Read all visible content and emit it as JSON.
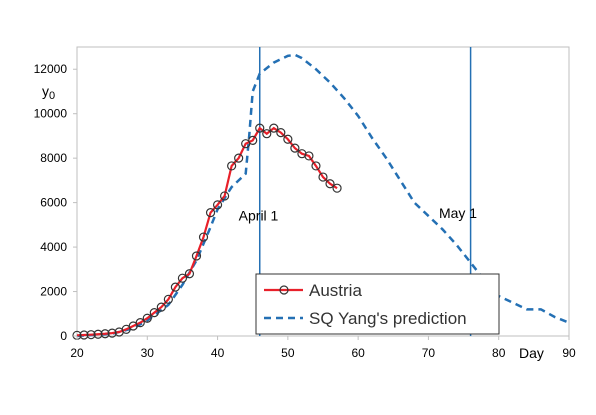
{
  "chart_data": {
    "type": "line",
    "title": "",
    "xlabel": "Day",
    "ylabel": "y0",
    "xlim": [
      20,
      90
    ],
    "ylim": [
      0,
      13000
    ],
    "x_ticks": [
      20,
      30,
      40,
      50,
      60,
      70,
      80,
      90
    ],
    "y_ticks": [
      0,
      2000,
      4000,
      6000,
      8000,
      10000,
      12000
    ],
    "grid": false,
    "legend_position": "bottom-right",
    "colors": {
      "austria": "#e8202a",
      "prediction": "#2470b4",
      "vertical_lines": "#2470b4",
      "marker_edge": "#333333"
    },
    "series": [
      {
        "name": "Austria",
        "style": "solid-line-with-circle-markers",
        "x": [
          20,
          21,
          22,
          23,
          24,
          25,
          26,
          27,
          28,
          29,
          30,
          31,
          32,
          33,
          34,
          35,
          36,
          37,
          38,
          39,
          40,
          41,
          42,
          43,
          44,
          45,
          46,
          47,
          48,
          49,
          50,
          51,
          52,
          53,
          54,
          55,
          56,
          57
        ],
        "y": [
          30,
          45,
          60,
          80,
          100,
          130,
          180,
          300,
          450,
          600,
          800,
          1050,
          1300,
          1650,
          2200,
          2600,
          2800,
          3600,
          4450,
          5550,
          5900,
          6300,
          7650,
          8000,
          8650,
          8800,
          9350,
          9100,
          9350,
          9150,
          8850,
          8450,
          8200,
          8100,
          7650,
          7150,
          6850,
          6650
        ]
      },
      {
        "name": "SQ Yang's prediction",
        "style": "dashed-line",
        "x": [
          20,
          25,
          28,
          30,
          33,
          35,
          37,
          39,
          40,
          41,
          42,
          43,
          44,
          44.5,
          45,
          46,
          48,
          50,
          51,
          52,
          54,
          56,
          58,
          60,
          62,
          64,
          66,
          68,
          70,
          72,
          74,
          76,
          78,
          80,
          82,
          84,
          86,
          88,
          90
        ],
        "y": [
          0,
          100,
          350,
          700,
          1400,
          2300,
          3400,
          4900,
          5700,
          6200,
          6700,
          7000,
          7300,
          9000,
          11000,
          11800,
          12300,
          12600,
          12650,
          12500,
          12000,
          11400,
          10700,
          9900,
          8900,
          8000,
          7000,
          6000,
          5400,
          4800,
          4100,
          3300,
          2500,
          1800,
          1500,
          1200,
          1200,
          850,
          600
        ]
      }
    ],
    "vertical_lines": [
      46,
      76
    ],
    "annotations": [
      {
        "text": "April 1",
        "x": 43,
        "y": 5200
      },
      {
        "text": "May 1",
        "x": 71.5,
        "y": 5300
      }
    ]
  }
}
